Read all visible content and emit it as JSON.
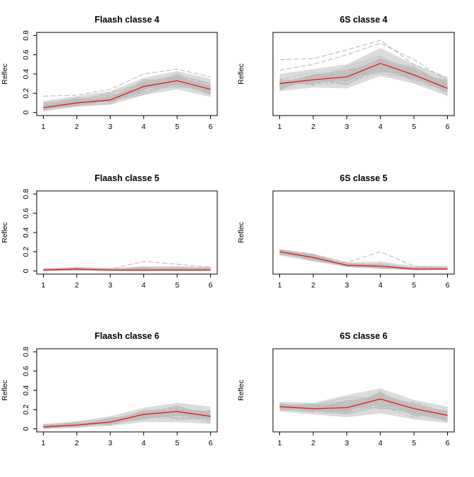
{
  "figure": {
    "background": "#ffffff",
    "colors": {
      "envelope": "#bebebe",
      "mean": "#ff0000",
      "axis": "#000000"
    }
  },
  "chart_data": [
    {
      "type": "line",
      "title": "Flaash classe  4",
      "ylabel": "Reflec",
      "x": [
        1,
        2,
        3,
        4,
        5,
        6
      ],
      "ylim": [
        0,
        0.8
      ],
      "yticks": [
        0,
        0.2,
        0.4,
        0.6,
        0.8
      ],
      "series": [
        {
          "values": [
            0.05,
            0.1,
            0.13,
            0.27,
            0.33,
            0.24
          ]
        }
      ],
      "spread_lower": [
        0.01,
        0.06,
        0.08,
        0.18,
        0.24,
        0.16
      ],
      "spread_upper": [
        0.12,
        0.17,
        0.22,
        0.36,
        0.43,
        0.35
      ],
      "outlier_lines": [
        [
          0.17,
          0.18,
          0.24,
          0.4,
          0.45,
          0.37
        ]
      ],
      "show_y_tick_labels": true
    },
    {
      "type": "line",
      "title": "6S classe  4",
      "ylabel": "Reflec",
      "x": [
        1,
        2,
        3,
        4,
        5,
        6
      ],
      "ylim": [
        0,
        0.8
      ],
      "yticks": [
        0,
        0.2,
        0.4,
        0.6,
        0.8
      ],
      "series": [
        {
          "values": [
            0.3,
            0.34,
            0.37,
            0.51,
            0.39,
            0.25
          ]
        }
      ],
      "spread_lower": [
        0.22,
        0.26,
        0.25,
        0.38,
        0.3,
        0.17
      ],
      "spread_upper": [
        0.4,
        0.45,
        0.5,
        0.67,
        0.5,
        0.36
      ],
      "outlier_lines": [
        [
          0.55,
          0.56,
          0.65,
          0.75,
          0.5,
          0.36
        ],
        [
          0.44,
          0.5,
          0.6,
          0.72,
          0.55,
          0.33
        ]
      ],
      "show_y_tick_labels": false
    },
    {
      "type": "line",
      "title": "Flaash classe  5",
      "ylabel": "Reflec",
      "x": [
        1,
        2,
        3,
        4,
        5,
        6
      ],
      "ylim": [
        0,
        0.8
      ],
      "yticks": [
        0,
        0.2,
        0.4,
        0.6,
        0.8
      ],
      "series": [
        {
          "values": [
            0.01,
            0.02,
            0.01,
            0.01,
            0.01,
            0.01
          ]
        }
      ],
      "spread_lower": [
        0.0,
        0.0,
        0.0,
        0.0,
        0.0,
        0.0
      ],
      "spread_upper": [
        0.03,
        0.04,
        0.03,
        0.05,
        0.05,
        0.04
      ],
      "outlier_lines": [
        [
          0.02,
          0.03,
          0.02,
          0.1,
          0.07,
          0.04
        ]
      ],
      "show_y_tick_labels": true
    },
    {
      "type": "line",
      "title": "6S classe  5",
      "ylabel": "Reflec",
      "x": [
        1,
        2,
        3,
        4,
        5,
        6
      ],
      "ylim": [
        0,
        0.8
      ],
      "yticks": [
        0,
        0.2,
        0.4,
        0.6,
        0.8
      ],
      "series": [
        {
          "values": [
            0.2,
            0.14,
            0.06,
            0.05,
            0.02,
            0.02
          ]
        }
      ],
      "spread_lower": [
        0.16,
        0.1,
        0.04,
        0.02,
        0.01,
        0.01
      ],
      "spread_upper": [
        0.23,
        0.18,
        0.09,
        0.1,
        0.05,
        0.05
      ],
      "outlier_lines": [
        [
          0.22,
          0.17,
          0.09,
          0.2,
          0.05,
          0.04
        ]
      ],
      "show_y_tick_labels": false
    },
    {
      "type": "line",
      "title": "Flaash classe  6",
      "ylabel": "Reflec",
      "x": [
        1,
        2,
        3,
        4,
        5,
        6
      ],
      "ylim": [
        0,
        0.8
      ],
      "yticks": [
        0,
        0.2,
        0.4,
        0.6,
        0.8
      ],
      "series": [
        {
          "values": [
            0.02,
            0.04,
            0.07,
            0.15,
            0.18,
            0.13
          ]
        }
      ],
      "spread_lower": [
        0.0,
        0.01,
        0.03,
        0.07,
        0.07,
        0.05
      ],
      "spread_upper": [
        0.05,
        0.08,
        0.13,
        0.22,
        0.27,
        0.23
      ],
      "outlier_lines": [],
      "show_y_tick_labels": true
    },
    {
      "type": "line",
      "title": "6S classe  6",
      "ylabel": "Reflec",
      "x": [
        1,
        2,
        3,
        4,
        5,
        6
      ],
      "ylim": [
        0,
        0.8
      ],
      "yticks": [
        0,
        0.2,
        0.4,
        0.6,
        0.8
      ],
      "series": [
        {
          "values": [
            0.23,
            0.21,
            0.22,
            0.31,
            0.21,
            0.14
          ]
        }
      ],
      "spread_lower": [
        0.18,
        0.15,
        0.12,
        0.16,
        0.1,
        0.06
      ],
      "spread_upper": [
        0.28,
        0.27,
        0.35,
        0.42,
        0.3,
        0.23
      ],
      "outlier_lines": [],
      "show_y_tick_labels": false
    }
  ]
}
